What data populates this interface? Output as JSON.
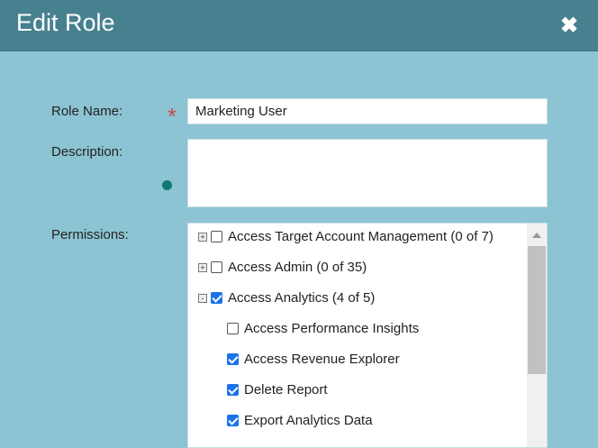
{
  "dialog": {
    "title": "Edit Role",
    "close_icon": "close-icon"
  },
  "form": {
    "role_name_label": "Role Name:",
    "role_name_value": "Marketing User",
    "required_marker": "*",
    "description_label": "Description:",
    "description_value": "",
    "permissions_label": "Permissions:"
  },
  "permissions": [
    {
      "label": "Access Target Account Management (0 of 7)",
      "checked": false,
      "expander": "+",
      "level": 0
    },
    {
      "label": "Access Admin (0 of 35)",
      "checked": false,
      "expander": "+",
      "level": 0
    },
    {
      "label": "Access Analytics (4 of 5)",
      "checked": true,
      "expander": "-",
      "level": 0
    },
    {
      "label": "Access Performance Insights",
      "checked": false,
      "level": 1
    },
    {
      "label": "Access Revenue Explorer",
      "checked": true,
      "level": 1
    },
    {
      "label": "Delete Report",
      "checked": true,
      "level": 1
    },
    {
      "label": "Export Analytics Data",
      "checked": true,
      "level": 1
    }
  ],
  "colors": {
    "header": "#47818f",
    "background": "#8cc4d3",
    "checkbox": "#1a73e8",
    "required": "#c0504d"
  }
}
